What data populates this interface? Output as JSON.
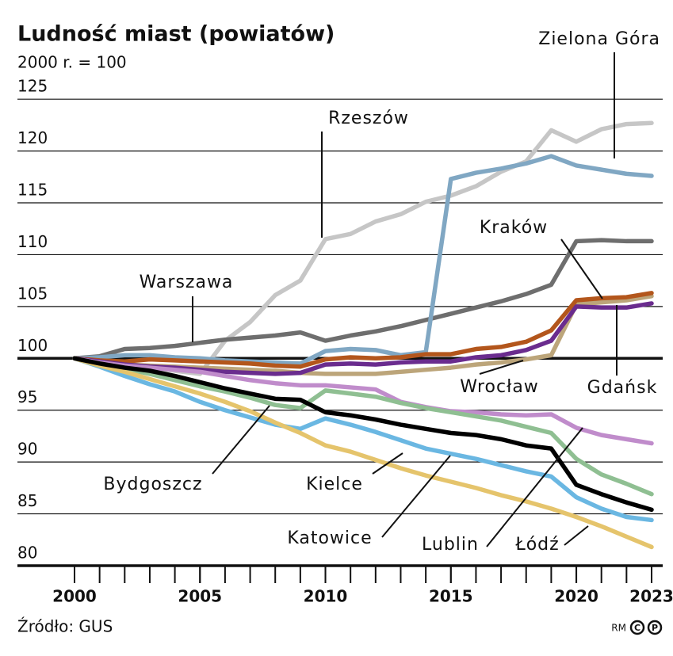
{
  "chart_data": {
    "type": "line",
    "title": "Ludność miast (powiatów)",
    "subtitle": "2000 r. = 100",
    "x": [
      2000,
      2001,
      2002,
      2003,
      2004,
      2005,
      2006,
      2007,
      2008,
      2009,
      2010,
      2011,
      2012,
      2013,
      2014,
      2015,
      2016,
      2017,
      2018,
      2019,
      2020,
      2021,
      2022,
      2023
    ],
    "xlim": [
      2000,
      2023
    ],
    "xticks": [
      2000,
      2005,
      2010,
      2015,
      2020,
      2023
    ],
    "ylim": [
      80,
      127
    ],
    "yticks": [
      80,
      85,
      90,
      95,
      100,
      105,
      110,
      115,
      120,
      125
    ],
    "grid": true,
    "baseline": 100,
    "series": [
      {
        "name": "Rzeszów",
        "color": "#c6c6c6",
        "values": [
          100,
          99.7,
          99.4,
          99.1,
          98.8,
          98.5,
          101.7,
          103.5,
          106.1,
          107.5,
          111.5,
          112,
          113.2,
          113.9,
          115.1,
          115.7,
          116.6,
          118,
          119,
          122,
          120.9,
          122.1,
          122.6,
          122.7
        ]
      },
      {
        "name": "Warszawa",
        "color": "#6e6e6e",
        "values": [
          100,
          100.2,
          100.9,
          101,
          101.2,
          101.5,
          101.8,
          102,
          102.2,
          102.5,
          101.7,
          102.2,
          102.6,
          103.1,
          103.7,
          104.3,
          104.9,
          105.5,
          106.2,
          107.1,
          111.3,
          111.4,
          111.3,
          111.3
        ]
      },
      {
        "name": "Zielona Góra",
        "color": "#80a7c3",
        "values": [
          100,
          100.1,
          100.3,
          100.3,
          100.1,
          100,
          99.8,
          99.7,
          99.6,
          99.5,
          100.7,
          100.9,
          100.8,
          100.3,
          100.6,
          117.3,
          117.9,
          118.3,
          118.8,
          119.5,
          118.6,
          118.2,
          117.8,
          117.6
        ]
      },
      {
        "name": "Wrocław",
        "color": "#bca57a",
        "values": [
          100,
          99.6,
          99.4,
          99.3,
          99.2,
          99.1,
          99,
          98.9,
          98.8,
          98.6,
          98.5,
          98.5,
          98.5,
          98.7,
          98.9,
          99.1,
          99.4,
          99.6,
          99.9,
          100.3,
          105.2,
          105.4,
          105.6,
          106
        ]
      },
      {
        "name": "Kraków",
        "color": "#b3561c",
        "values": [
          100,
          99.8,
          99.7,
          99.9,
          99.8,
          99.7,
          99.6,
          99.5,
          99.3,
          99.2,
          99.9,
          100.1,
          100,
          100.1,
          100.4,
          100.4,
          100.9,
          101.1,
          101.6,
          102.7,
          105.6,
          105.8,
          105.9,
          106.3
        ]
      },
      {
        "name": "Gdańsk",
        "color": "#6a2c8e",
        "values": [
          100,
          99.7,
          99.4,
          99.2,
          99.1,
          98.9,
          98.7,
          98.6,
          98.5,
          98.6,
          99.4,
          99.5,
          99.4,
          99.6,
          99.7,
          99.7,
          100.1,
          100.3,
          100.8,
          101.7,
          105,
          104.9,
          104.9,
          105.3
        ]
      },
      {
        "name": "Lublin",
        "color": "#c08ccb",
        "values": [
          100,
          99.6,
          99.3,
          99.1,
          98.9,
          98.7,
          98.3,
          97.9,
          97.6,
          97.4,
          97.4,
          97.2,
          97,
          95.8,
          95.3,
          94.9,
          94.8,
          94.6,
          94.5,
          94.6,
          93.3,
          92.6,
          92.2,
          91.8
        ]
      },
      {
        "name": "Bydgoszcz",
        "color": "#8fbf92",
        "values": [
          100,
          99.5,
          99,
          98.5,
          97.9,
          97.3,
          96.8,
          96.2,
          95.5,
          95.2,
          96.9,
          96.6,
          96.3,
          95.7,
          95.2,
          94.8,
          94.4,
          94,
          93.4,
          92.8,
          90.3,
          88.8,
          87.9,
          86.9
        ]
      },
      {
        "name": "Katowice",
        "color": "#6ab7e2",
        "values": [
          100,
          99.2,
          98.3,
          97.5,
          96.8,
          95.8,
          95,
          94.3,
          93.6,
          93.2,
          94.2,
          93.6,
          92.9,
          92.1,
          91.3,
          90.8,
          90.3,
          89.7,
          89.1,
          88.6,
          86.6,
          85.5,
          84.7,
          84.4
        ]
      },
      {
        "name": "Łódź",
        "color": "#e5c46c",
        "values": [
          100,
          99.3,
          98.7,
          98,
          97.3,
          96.6,
          95.8,
          94.9,
          93.8,
          92.8,
          91.6,
          91,
          90.2,
          89.4,
          88.7,
          88.1,
          87.5,
          86.8,
          86.2,
          85.5,
          84.7,
          83.8,
          82.8,
          81.8
        ]
      },
      {
        "name": "Kielce",
        "color": "#000000",
        "values": [
          100,
          99.5,
          99.1,
          98.8,
          98.3,
          97.7,
          97.1,
          96.6,
          96.1,
          96,
          94.8,
          94.5,
          94.1,
          93.6,
          93.2,
          92.8,
          92.6,
          92.2,
          91.6,
          91.3,
          87.8,
          86.9,
          86.1,
          85.4
        ]
      }
    ],
    "source": "Źródło: GUS",
    "credit": "RM"
  }
}
